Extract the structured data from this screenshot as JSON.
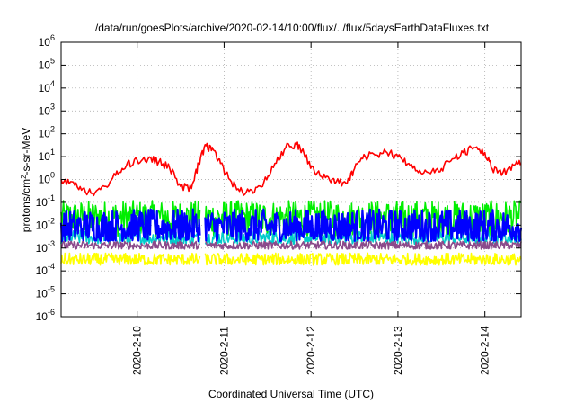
{
  "chart_data": {
    "type": "line",
    "title": "/data/run/goesPlots/archive/2020-02-14/10:00/flux/../flux/5daysEarthDataFluxes.txt",
    "xlabel": "Coordinated Universal Time (UTC)",
    "ylabel": "protons/cm²-s-sr-MeV",
    "ylabel_parts": {
      "base": "protons/cm",
      "sup": "2",
      "rest": "-s-sr-MeV"
    },
    "y_scale": "log",
    "ylim": [
      1e-06,
      1000000.0
    ],
    "xlim": [
      "2020-02-09T03:00",
      "2020-02-14T10:00"
    ],
    "grid": true,
    "x_ticks": [
      {
        "date": "2020-02-10T00:00",
        "label": "2020-2-10"
      },
      {
        "date": "2020-02-11T00:00",
        "label": "2020-2-11"
      },
      {
        "date": "2020-02-12T00:00",
        "label": "2020-2-12"
      },
      {
        "date": "2020-02-13T00:00",
        "label": "2020-2-13"
      },
      {
        "date": "2020-02-14T00:00",
        "label": "2020-2-14"
      }
    ],
    "y_ticks": [
      {
        "value": 1000000.0,
        "base": "10",
        "exp": "6"
      },
      {
        "value": 100000.0,
        "base": "10",
        "exp": "5"
      },
      {
        "value": 10000.0,
        "base": "10",
        "exp": "4"
      },
      {
        "value": 1000.0,
        "base": "10",
        "exp": "3"
      },
      {
        "value": 100.0,
        "base": "10",
        "exp": "2"
      },
      {
        "value": 10.0,
        "base": "10",
        "exp": "1"
      },
      {
        "value": 1.0,
        "base": "10",
        "exp": "0"
      },
      {
        "value": 0.1,
        "base": "10",
        "exp": "-1"
      },
      {
        "value": 0.01,
        "base": "10",
        "exp": "-2"
      },
      {
        "value": 0.001,
        "base": "10",
        "exp": "-3"
      },
      {
        "value": 0.0001,
        "base": "10",
        "exp": "-4"
      },
      {
        "value": 1e-05,
        "base": "10",
        "exp": "-5"
      },
      {
        "value": 1e-06,
        "base": "10",
        "exp": "-6"
      }
    ],
    "series": [
      {
        "color": "#ff0000",
        "x": [
          "2020-02-09T03:00",
          "2020-02-09T06:00",
          "2020-02-09T09:00",
          "2020-02-09T12:00",
          "2020-02-09T15:00",
          "2020-02-09T18:00",
          "2020-02-09T21:00",
          "2020-02-10T00:00",
          "2020-02-10T03:00",
          "2020-02-10T06:00",
          "2020-02-10T09:00",
          "2020-02-10T12:00",
          "2020-02-10T15:00",
          "2020-02-10T17:00",
          "2020-02-10T19:00",
          "2020-02-10T21:00",
          "2020-02-10T23:00",
          "2020-02-11T02:00",
          "2020-02-11T05:00",
          "2020-02-11T08:00",
          "2020-02-11T11:00",
          "2020-02-11T14:00",
          "2020-02-11T17:00",
          "2020-02-11T20:00",
          "2020-02-11T22:00",
          "2020-02-12T01:00",
          "2020-02-12T04:00",
          "2020-02-12T07:00",
          "2020-02-12T10:00",
          "2020-02-12T12:00",
          "2020-02-12T15:00",
          "2020-02-12T18:00",
          "2020-02-12T21:00",
          "2020-02-13T00:00",
          "2020-02-13T03:00",
          "2020-02-13T06:00",
          "2020-02-13T09:00",
          "2020-02-13T12:00",
          "2020-02-13T15:00",
          "2020-02-13T18:00",
          "2020-02-13T21:00",
          "2020-02-14T00:00",
          "2020-02-14T02:00",
          "2020-02-14T05:00",
          "2020-02-14T08:00",
          "2020-02-14T10:00"
        ],
        "values": [
          1.0,
          0.8,
          0.4,
          0.2,
          0.5,
          1.5,
          4,
          7,
          8,
          6,
          3,
          0.5,
          0.4,
          5,
          30,
          20,
          5,
          0.8,
          0.3,
          0.25,
          0.8,
          5,
          25,
          35,
          15,
          2,
          1.2,
          0.8,
          0.7,
          3,
          10,
          12,
          15,
          10,
          5,
          2.5,
          1.8,
          3,
          8,
          15,
          25,
          15,
          3,
          2,
          4,
          5
        ]
      },
      {
        "color": "#00ee00",
        "values": [
          0.003,
          0.12
        ],
        "note_level": "band"
      },
      {
        "color": "#00cccc",
        "values": [
          0.0015,
          0.006
        ]
      },
      {
        "color": "#0000ff",
        "values": [
          0.002,
          0.05
        ]
      },
      {
        "color": "#8b4a8b",
        "values": [
          0.0009,
          0.002
        ]
      },
      {
        "color": "#ffff00",
        "values": [
          0.00018,
          0.0006
        ]
      }
    ]
  },
  "colors": {
    "frame": "#000000",
    "grid": "#a0a0a0"
  }
}
